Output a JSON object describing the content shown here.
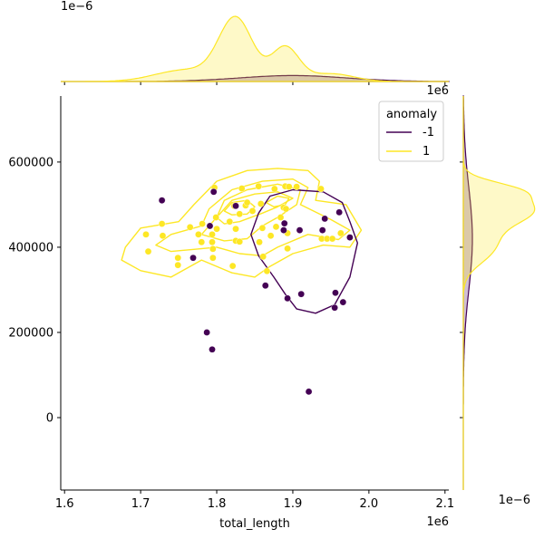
{
  "chart_data": {
    "type": "scatter",
    "title": "",
    "xlabel": "total_length",
    "ylabel": "",
    "x_offset_label": "1e6",
    "y_offset_label": "1e6",
    "marg_top_offset_label": "1e−6",
    "marg_right_offset_label": "1e−6",
    "xlim": [
      1.595,
      2.105
    ],
    "ylim": [
      -170000,
      755000
    ],
    "x_ticks": [
      1.6,
      1.7,
      1.8,
      1.9,
      2.0,
      2.1
    ],
    "x_tick_labels": [
      "1.6",
      "1.7",
      "1.8",
      "1.9",
      "2.0",
      "2.1"
    ],
    "y_ticks": [
      0,
      200000,
      400000,
      600000
    ],
    "y_tick_labels": [
      "0",
      "200000",
      "400000",
      "600000"
    ],
    "grid": false,
    "legend": {
      "title": "anomaly",
      "placement": "top-right",
      "entries": [
        {
          "label": "-1",
          "color": "#440154"
        },
        {
          "label": "1",
          "color": "#fde725"
        }
      ]
    },
    "series": [
      {
        "name": "1",
        "color": "#fde725",
        "points": [
          [
            1.707,
            430000
          ],
          [
            1.71,
            390000
          ],
          [
            1.728,
            455000
          ],
          [
            1.729,
            427000
          ],
          [
            1.749,
            375000
          ],
          [
            1.749,
            358000
          ],
          [
            1.765,
            447000
          ],
          [
            1.776,
            430000
          ],
          [
            1.78,
            412000
          ],
          [
            1.781,
            455000
          ],
          [
            1.794,
            430000
          ],
          [
            1.794,
            412000
          ],
          [
            1.795,
            396000
          ],
          [
            1.795,
            375000
          ],
          [
            1.797,
            540000
          ],
          [
            1.799,
            470000
          ],
          [
            1.8,
            443000
          ],
          [
            1.817,
            460000
          ],
          [
            1.821,
            356000
          ],
          [
            1.823,
            497000
          ],
          [
            1.825,
            443000
          ],
          [
            1.825,
            415000
          ],
          [
            1.83,
            413000
          ],
          [
            1.83,
            478000
          ],
          [
            1.833,
            538000
          ],
          [
            1.838,
            498000
          ],
          [
            1.84,
            505000
          ],
          [
            1.847,
            485000
          ],
          [
            1.855,
            543000
          ],
          [
            1.856,
            412000
          ],
          [
            1.858,
            502000
          ],
          [
            1.86,
            445000
          ],
          [
            1.861,
            378000
          ],
          [
            1.866,
            344000
          ],
          [
            1.871,
            427000
          ],
          [
            1.876,
            537000
          ],
          [
            1.878,
            448000
          ],
          [
            1.884,
            470000
          ],
          [
            1.888,
            493000
          ],
          [
            1.89,
            543000
          ],
          [
            1.891,
            490000
          ],
          [
            1.893,
            433000
          ],
          [
            1.893,
            397000
          ],
          [
            1.895,
            542000
          ],
          [
            1.905,
            542000
          ],
          [
            1.937,
            537000
          ],
          [
            1.938,
            420000
          ],
          [
            1.945,
            420000
          ],
          [
            1.952,
            420000
          ],
          [
            1.963,
            433000
          ]
        ]
      },
      {
        "name": "-1",
        "color": "#440154",
        "points": [
          [
            1.728,
            510000
          ],
          [
            1.769,
            375000
          ],
          [
            1.787,
            200000
          ],
          [
            1.791,
            450000
          ],
          [
            1.794,
            160000
          ],
          [
            1.796,
            530000
          ],
          [
            1.825,
            497000
          ],
          [
            1.864,
            310000
          ],
          [
            1.888,
            440000
          ],
          [
            1.889,
            456000
          ],
          [
            1.893,
            280000
          ],
          [
            1.909,
            440000
          ],
          [
            1.911,
            290000
          ],
          [
            1.921,
            61000
          ],
          [
            1.939,
            440000
          ],
          [
            1.942,
            467000
          ],
          [
            1.955,
            258000
          ],
          [
            1.956,
            293000
          ],
          [
            1.961,
            482000
          ],
          [
            1.966,
            271000
          ],
          [
            1.975,
            423000
          ]
        ]
      }
    ],
    "marginal_x": {
      "anomaly_1_peaks": [
        1.825,
        1.89
      ],
      "note_visible": "density curves only; no tick labels printed"
    }
  }
}
